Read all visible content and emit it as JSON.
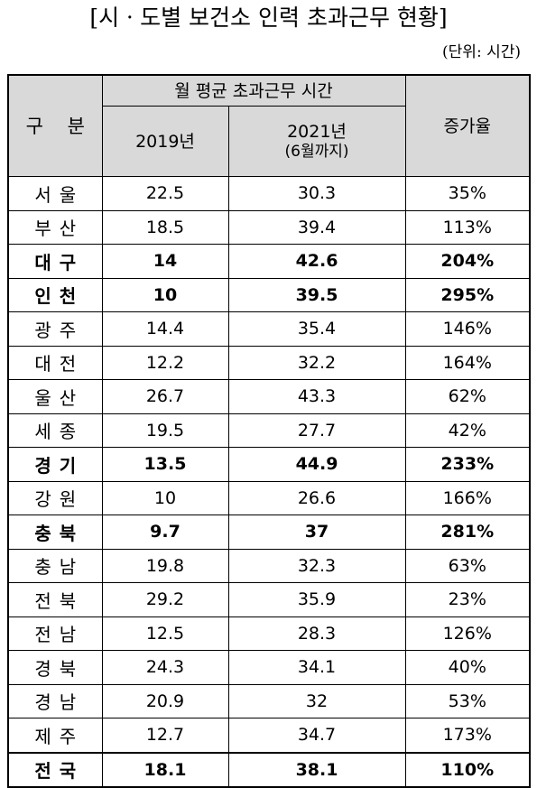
{
  "title": "[시ㆍ도별 보건소 인력 초과근무 현황]",
  "unit": "(단위: 시간)",
  "header": {
    "category": "구 분",
    "group": "월 평균 초과근무 시간",
    "col2019": "2019년",
    "col2021_line1": "2021년",
    "col2021_line2": "(6월까지)",
    "rate": "증가율"
  },
  "rows": [
    {
      "region": "서울",
      "y2019": "22.5",
      "y2021": "30.3",
      "rate": "35%",
      "bold": false
    },
    {
      "region": "부산",
      "y2019": "18.5",
      "y2021": "39.4",
      "rate": "113%",
      "bold": false
    },
    {
      "region": "대구",
      "y2019": "14",
      "y2021": "42.6",
      "rate": "204%",
      "bold": true
    },
    {
      "region": "인천",
      "y2019": "10",
      "y2021": "39.5",
      "rate": "295%",
      "bold": true
    },
    {
      "region": "광주",
      "y2019": "14.4",
      "y2021": "35.4",
      "rate": "146%",
      "bold": false
    },
    {
      "region": "대전",
      "y2019": "12.2",
      "y2021": "32.2",
      "rate": "164%",
      "bold": false
    },
    {
      "region": "울산",
      "y2019": "26.7",
      "y2021": "43.3",
      "rate": "62%",
      "bold": false
    },
    {
      "region": "세종",
      "y2019": "19.5",
      "y2021": "27.7",
      "rate": "42%",
      "bold": false
    },
    {
      "region": "경기",
      "y2019": "13.5",
      "y2021": "44.9",
      "rate": "233%",
      "bold": true
    },
    {
      "region": "강원",
      "y2019": "10",
      "y2021": "26.6",
      "rate": "166%",
      "bold": false
    },
    {
      "region": "충북",
      "y2019": "9.7",
      "y2021": "37",
      "rate": "281%",
      "bold": true
    },
    {
      "region": "충남",
      "y2019": "19.8",
      "y2021": "32.3",
      "rate": "63%",
      "bold": false
    },
    {
      "region": "전북",
      "y2019": "29.2",
      "y2021": "35.9",
      "rate": "23%",
      "bold": false
    },
    {
      "region": "전남",
      "y2019": "12.5",
      "y2021": "28.3",
      "rate": "126%",
      "bold": false
    },
    {
      "region": "경북",
      "y2019": "24.3",
      "y2021": "34.1",
      "rate": "40%",
      "bold": false
    },
    {
      "region": "경남",
      "y2019": "20.9",
      "y2021": "32",
      "rate": "53%",
      "bold": false
    },
    {
      "region": "제주",
      "y2019": "12.7",
      "y2021": "34.7",
      "rate": "173%",
      "bold": false
    },
    {
      "region": "전국",
      "y2019": "18.1",
      "y2021": "38.1",
      "rate": "110%",
      "bold": true
    }
  ]
}
